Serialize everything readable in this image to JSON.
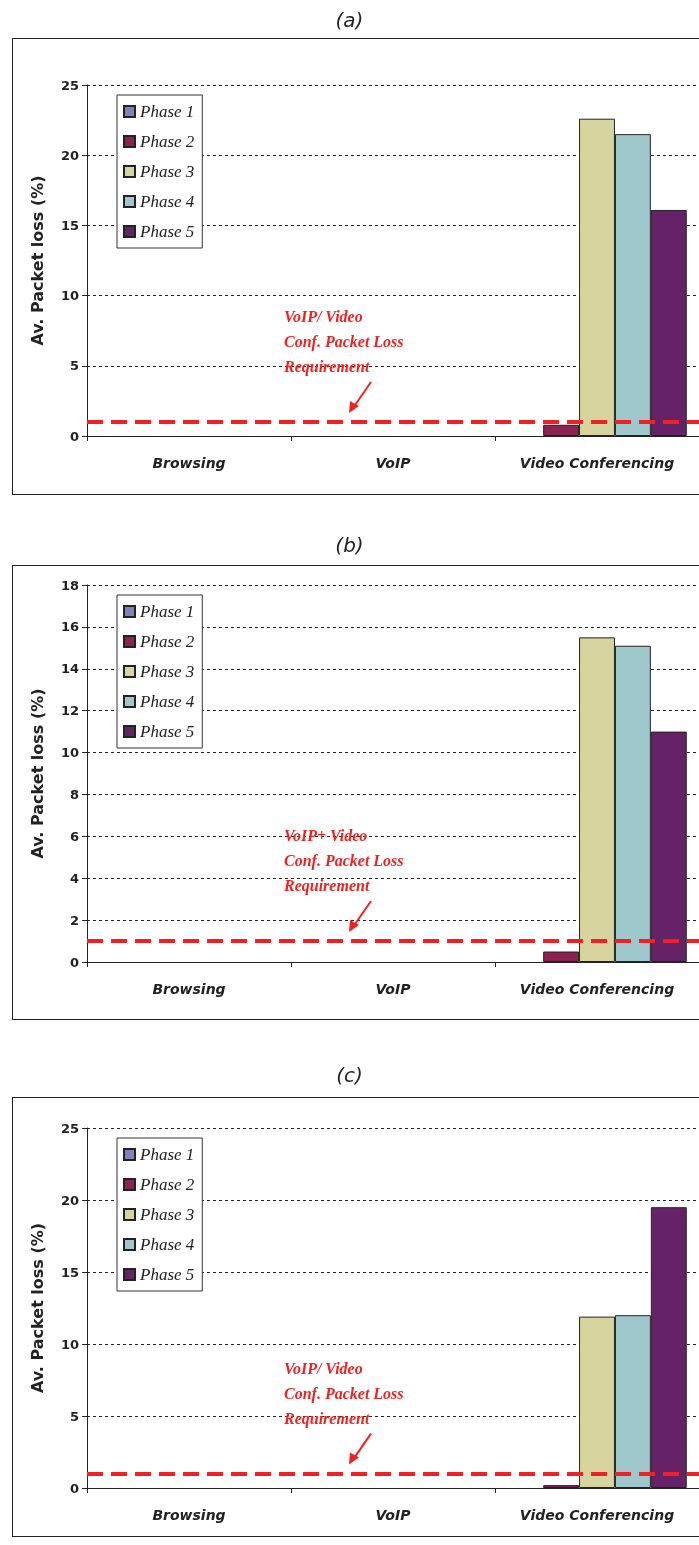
{
  "chart_data": [
    {
      "type": "bar",
      "title": "(a)",
      "ylabel": "Av. Packet loss (%)",
      "categories": [
        "Browsing",
        "VoIP",
        "Video Conferencing"
      ],
      "ylim": [
        0,
        25
      ],
      "yticks": [
        0,
        5,
        10,
        15,
        20,
        25
      ],
      "grid": "y",
      "legend": "top left",
      "series": [
        {
          "name": "Phase 1",
          "color": "#8080c0",
          "values": [
            null,
            null,
            null
          ]
        },
        {
          "name": "Phase 2",
          "color": "#8b2252",
          "values": [
            null,
            null,
            0.8
          ]
        },
        {
          "name": "Phase 3",
          "color": "#d8d4a0",
          "values": [
            null,
            null,
            22.6
          ]
        },
        {
          "name": "Phase 4",
          "color": "#9fc8cc",
          "values": [
            null,
            null,
            21.5
          ]
        },
        {
          "name": "Phase 5",
          "color": "#662266",
          "values": [
            null,
            null,
            16.1
          ]
        }
      ],
      "ref_lines": [
        {
          "axis": "y",
          "value": 1,
          "label": "VoIP/ Video\nConf. Packet Loss\nRequirement",
          "color": "#ee2222",
          "line_style": "dashed"
        }
      ]
    },
    {
      "type": "bar",
      "title": "(b)",
      "ylabel": "Av. Packet loss (%)",
      "categories": [
        "Browsing",
        "VoIP",
        "Video Conferencing"
      ],
      "ylim": [
        0,
        18
      ],
      "yticks": [
        0,
        2,
        4,
        6,
        8,
        10,
        12,
        14,
        16,
        18
      ],
      "grid": "y",
      "legend": "top left",
      "series": [
        {
          "name": "Phase 1",
          "color": "#8080c0",
          "values": [
            null,
            null,
            null
          ]
        },
        {
          "name": "Phase 2",
          "color": "#8b2252",
          "values": [
            null,
            null,
            0.5
          ]
        },
        {
          "name": "Phase 3",
          "color": "#d8d4a0",
          "values": [
            null,
            null,
            15.5
          ]
        },
        {
          "name": "Phase 4",
          "color": "#9fc8cc",
          "values": [
            null,
            null,
            15.1
          ]
        },
        {
          "name": "Phase 5",
          "color": "#662266",
          "values": [
            null,
            null,
            11.0
          ]
        }
      ],
      "ref_lines": [
        {
          "axis": "y",
          "value": 1,
          "label": "VoIP+ Video\nConf. Packet Loss\nRequirement",
          "color": "#ee2222",
          "line_style": "dashed"
        }
      ]
    },
    {
      "type": "bar",
      "title": "(c)",
      "ylabel": "Av. Packet loss (%)",
      "categories": [
        "Browsing",
        "VoIP",
        "Video Conferencing"
      ],
      "ylim": [
        0,
        25
      ],
      "yticks": [
        0,
        5,
        10,
        15,
        20,
        25
      ],
      "grid": "y",
      "legend": "top left",
      "series": [
        {
          "name": "Phase 1",
          "color": "#8080c0",
          "values": [
            null,
            null,
            null
          ]
        },
        {
          "name": "Phase 2",
          "color": "#8b2252",
          "values": [
            null,
            null,
            0.2
          ]
        },
        {
          "name": "Phase 3",
          "color": "#d8d4a0",
          "values": [
            null,
            null,
            11.9
          ]
        },
        {
          "name": "Phase 4",
          "color": "#9fc8cc",
          "values": [
            null,
            null,
            12.0
          ]
        },
        {
          "name": "Phase 5",
          "color": "#662266",
          "values": [
            null,
            null,
            19.5
          ]
        }
      ],
      "ref_lines": [
        {
          "axis": "y",
          "value": 1,
          "label": "VoIP/ Video\nConf. Packet Loss\nRequirement",
          "color": "#ee2222",
          "line_style": "dashed"
        }
      ]
    }
  ]
}
